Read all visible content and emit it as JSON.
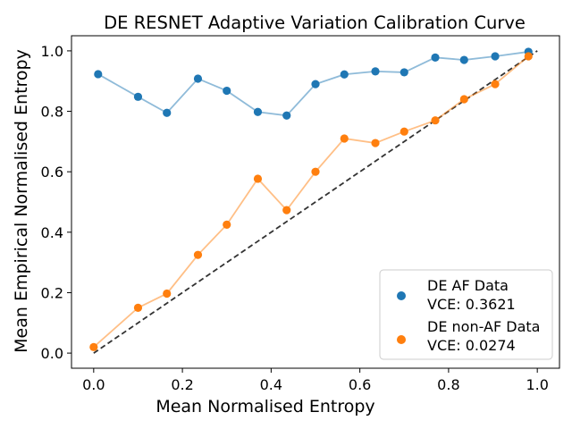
{
  "chart_data": {
    "type": "line",
    "title": "DE RESNET Adaptive Variation Calibration Curve",
    "xlabel": "Mean Normalised Entropy",
    "ylabel": "Mean Empirical Normalised Entropy",
    "xlim": [
      -0.05,
      1.05
    ],
    "ylim": [
      -0.05,
      1.05
    ],
    "xticks": [
      0.0,
      0.2,
      0.4,
      0.6,
      0.8,
      1.0
    ],
    "xtick_labels": [
      "0.0",
      "0.2",
      "0.4",
      "0.6",
      "0.8",
      "1.0"
    ],
    "yticks": [
      0.0,
      0.2,
      0.4,
      0.6,
      0.8,
      1.0
    ],
    "ytick_labels": [
      "0.0",
      "0.2",
      "0.4",
      "0.6",
      "0.8",
      "1.0"
    ],
    "grid": false,
    "legend_position": "bottom-right",
    "reference_line": {
      "x": [
        0,
        1
      ],
      "y": [
        0,
        1
      ],
      "style": "dashed",
      "color": "#333333"
    },
    "series": [
      {
        "name": "DE AF Data",
        "vce_label": "VCE: 0.3621",
        "color": "#1f77b4",
        "x": [
          0.01,
          0.1,
          0.165,
          0.235,
          0.3,
          0.37,
          0.435,
          0.5,
          0.565,
          0.635,
          0.7,
          0.77,
          0.835,
          0.905,
          0.98
        ],
        "y": [
          0.923,
          0.848,
          0.795,
          0.908,
          0.868,
          0.798,
          0.786,
          0.89,
          0.922,
          0.932,
          0.929,
          0.978,
          0.97,
          0.982,
          0.997
        ]
      },
      {
        "name": "DE non-AF Data",
        "vce_label": "VCE: 0.0274",
        "color": "#ff7f0e",
        "x": [
          0.0,
          0.1,
          0.165,
          0.235,
          0.3,
          0.37,
          0.435,
          0.5,
          0.565,
          0.635,
          0.7,
          0.77,
          0.835,
          0.905,
          0.98
        ],
        "y": [
          0.02,
          0.15,
          0.197,
          0.325,
          0.425,
          0.577,
          0.473,
          0.6,
          0.71,
          0.695,
          0.733,
          0.77,
          0.84,
          0.89,
          0.982
        ]
      }
    ]
  }
}
